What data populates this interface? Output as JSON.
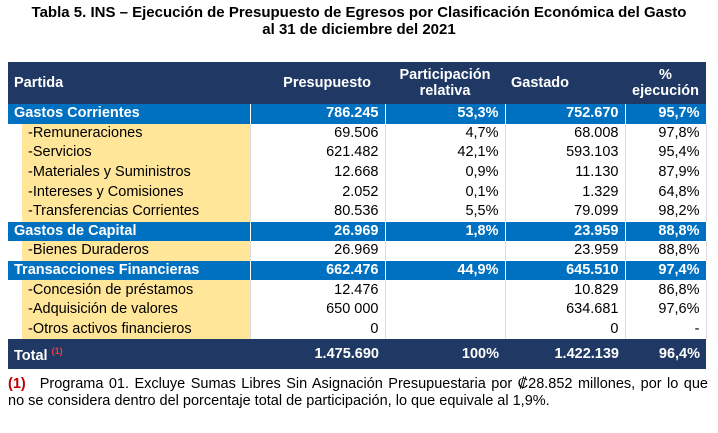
{
  "title": "Tabla 5. INS – Ejecución de Presupuesto de Egresos por Clasificación Económica del Gasto",
  "subtitle": "al 31 de diciembre del 2021",
  "table": {
    "header": [
      "Partida",
      "Presupuesto",
      "Participación relativa",
      "Gastado",
      "% ejecución"
    ],
    "rows": [
      {
        "type": "group",
        "cells": [
          "Gastos Corrientes",
          "786.245",
          "53,3%",
          "752.670",
          "95,7%"
        ]
      },
      {
        "type": "item",
        "cells": [
          "-Remuneraciones",
          "69.506",
          "4,7%",
          "68.008",
          "97,8%"
        ]
      },
      {
        "type": "item",
        "cells": [
          "-Servicios",
          "621.482",
          "42,1%",
          "593.103",
          "95,4%"
        ]
      },
      {
        "type": "item",
        "cells": [
          "-Materiales y Suministros",
          "12.668",
          "0,9%",
          "11.130",
          "87,9%"
        ]
      },
      {
        "type": "item",
        "cells": [
          "-Intereses y Comisiones",
          "2.052",
          "0,1%",
          "1.329",
          "64,8%"
        ]
      },
      {
        "type": "item",
        "cells": [
          "-Transferencias Corrientes",
          "80.536",
          "5,5%",
          "79.099",
          "98,2%"
        ]
      },
      {
        "type": "group",
        "cells": [
          "Gastos de Capital",
          "26.969",
          "1,8%",
          "23.959",
          "88,8%"
        ]
      },
      {
        "type": "item",
        "cells": [
          "-Bienes Duraderos",
          "26.969",
          "",
          "23.959",
          "88,8%"
        ]
      },
      {
        "type": "group",
        "cells": [
          "Transacciones Financieras",
          "662.476",
          "44,9%",
          "645.510",
          "97,4%"
        ]
      },
      {
        "type": "item",
        "cells": [
          "-Concesión de préstamos",
          "12.476",
          "",
          "10.829",
          "86,8%"
        ]
      },
      {
        "type": "item",
        "cells": [
          "-Adquisición de valores",
          "650 000",
          "",
          "634.681",
          "97,6%"
        ]
      },
      {
        "type": "item",
        "cells": [
          "-Otros activos financieros",
          "0",
          "",
          "0",
          "-"
        ]
      }
    ],
    "total": {
      "cells": [
        "Total",
        "1.475.690",
        "100%",
        "1.422.139",
        "96,4%"
      ],
      "note": "(1)"
    }
  },
  "footnote": {
    "marker": "(1)",
    "text": "Programa 01. Excluye Sumas Libres Sin Asignación Presupuestaria por ₡28.852 millones, por lo que no se considera dentro del porcentaje total de participación, lo que equivale al 1,9%."
  }
}
